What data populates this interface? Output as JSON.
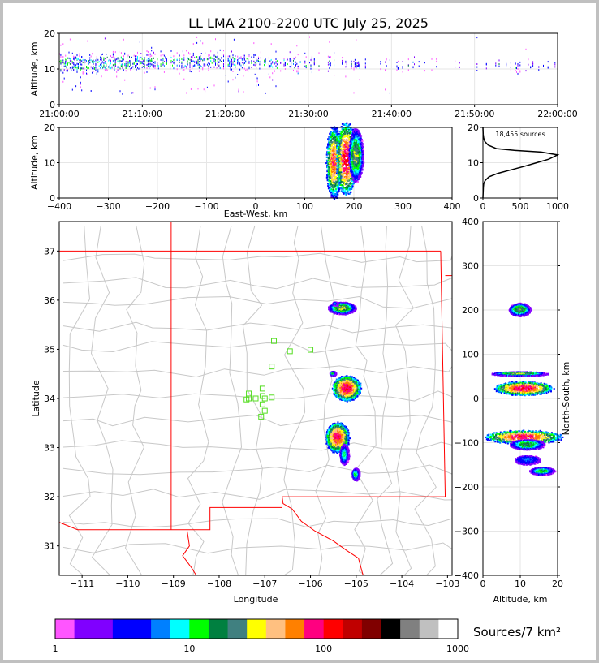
{
  "title": "LL LMA 2100-2200 UTC July 25, 2025",
  "chart_data": [
    {
      "type": "scatter",
      "panel": "time-height",
      "ylabel": "Altitude, km",
      "xlim": [
        "21:00:00",
        "22:00:00"
      ],
      "ylim": [
        0,
        20
      ],
      "x_ticks": [
        "21:00:00",
        "21:10:00",
        "21:20:00",
        "21:30:00",
        "21:40:00",
        "21:50:00",
        "22:00:00"
      ],
      "y_ticks": [
        "0",
        "10",
        "20"
      ],
      "activity": [
        {
          "t": "21:00",
          "lo": 8,
          "hi": 15,
          "density": 1.0
        },
        {
          "t": "21:05",
          "lo": 8,
          "hi": 15,
          "density": 1.0
        },
        {
          "t": "21:10",
          "lo": 9,
          "hi": 15,
          "density": 0.9
        },
        {
          "t": "21:15",
          "lo": 9,
          "hi": 15,
          "density": 0.85
        },
        {
          "t": "21:20",
          "lo": 9,
          "hi": 15,
          "density": 0.8
        },
        {
          "t": "21:25",
          "lo": 9,
          "hi": 14,
          "density": 0.6
        },
        {
          "t": "21:30",
          "lo": 9,
          "hi": 14,
          "density": 0.45
        },
        {
          "t": "21:35",
          "lo": 9,
          "hi": 14,
          "density": 0.45
        },
        {
          "t": "21:40",
          "lo": 9,
          "hi": 13,
          "density": 0.3
        },
        {
          "t": "21:45",
          "lo": 9,
          "hi": 13,
          "density": 0.2
        },
        {
          "t": "21:50",
          "lo": 9,
          "hi": 13,
          "density": 0.2
        },
        {
          "t": "21:55",
          "lo": 9,
          "hi": 13,
          "density": 0.25
        },
        {
          "t": "22:00",
          "lo": 9,
          "hi": 13,
          "density": 0.15
        }
      ]
    },
    {
      "type": "heatmap",
      "panel": "east-west-altitude",
      "xlabel": "East-West, km",
      "ylabel": "Altitude, km",
      "xlim": [
        -400,
        400
      ],
      "ylim": [
        0,
        20
      ],
      "x_ticks": [
        "−400",
        "−300",
        "−200",
        "−100",
        "0",
        "100",
        "200",
        "300",
        "400"
      ],
      "y_ticks": [
        "0",
        "10",
        "20"
      ],
      "blobs": [
        {
          "x": 160,
          "y": 10,
          "sx": 6,
          "sy": 4,
          "peak": 80
        },
        {
          "x": 185,
          "y": 11,
          "sx": 8,
          "sy": 4,
          "peak": 120
        },
        {
          "x": 205,
          "y": 12,
          "sx": 6,
          "sy": 3,
          "peak": 30
        }
      ]
    },
    {
      "type": "line",
      "panel": "altitude-histogram",
      "annotation": "18,455 sources",
      "xlim": [
        0,
        1000
      ],
      "ylim": [
        0,
        20
      ],
      "x_ticks": [
        "0",
        "500",
        "1000"
      ],
      "y_ticks": [
        "0",
        "10",
        "20"
      ],
      "x": [
        0,
        5,
        10,
        30,
        80,
        200,
        380,
        560,
        720,
        880,
        1000,
        780,
        420,
        180,
        70,
        25,
        10,
        3,
        0
      ],
      "y": [
        0,
        3,
        4,
        5,
        6,
        7,
        8,
        9,
        10,
        11,
        12.2,
        13,
        13.5,
        14,
        15,
        16,
        17,
        18,
        20
      ]
    },
    {
      "type": "heatmap",
      "panel": "plan-view-map",
      "xlabel": "Longitude",
      "ylabel": "Latitude",
      "xlim": [
        -111.5,
        -102.9
      ],
      "ylim": [
        30.4,
        37.6
      ],
      "x_ticks": [
        "−111",
        "−110",
        "−109",
        "−108",
        "−107",
        "−106",
        "−105",
        "−104",
        "−103"
      ],
      "y_ticks": [
        "31",
        "32",
        "33",
        "34",
        "35",
        "36",
        "37"
      ],
      "clusters": [
        {
          "lon": -105.2,
          "lat": 34.2,
          "slon": 0.12,
          "slat": 0.1,
          "peak": 120
        },
        {
          "lon": -105.5,
          "lat": 34.5,
          "slon": 0.03,
          "slat": 0.02,
          "peak": 15
        },
        {
          "lon": -105.4,
          "lat": 33.2,
          "slon": 0.1,
          "slat": 0.12,
          "peak": 100
        },
        {
          "lon": -105.25,
          "lat": 32.85,
          "slon": 0.05,
          "slat": 0.1,
          "peak": 10
        },
        {
          "lon": -105.0,
          "lat": 32.45,
          "slon": 0.04,
          "slat": 0.06,
          "peak": 12
        },
        {
          "lon": -105.3,
          "lat": 35.83,
          "slon": 0.12,
          "slat": 0.05,
          "peak": 30
        },
        {
          "lon": -105.45,
          "lat": 35.92,
          "slon": 0.03,
          "slat": 0.02,
          "peak": 8
        }
      ],
      "stations": [
        {
          "lon": -106.8,
          "lat": 35.17
        },
        {
          "lon": -106.45,
          "lat": 34.96
        },
        {
          "lon": -106.0,
          "lat": 34.99
        },
        {
          "lon": -106.85,
          "lat": 34.65
        },
        {
          "lon": -107.35,
          "lat": 34.1
        },
        {
          "lon": -107.05,
          "lat": 34.2
        },
        {
          "lon": -107.05,
          "lat": 34.05
        },
        {
          "lon": -107.35,
          "lat": 34.0
        },
        {
          "lon": -107.2,
          "lat": 34.0
        },
        {
          "lon": -107.0,
          "lat": 34.0
        },
        {
          "lon": -106.85,
          "lat": 34.02
        },
        {
          "lon": -107.4,
          "lat": 33.98
        },
        {
          "lon": -107.05,
          "lat": 33.88
        },
        {
          "lon": -107.0,
          "lat": 33.75
        },
        {
          "lon": -107.08,
          "lat": 33.63
        }
      ]
    },
    {
      "type": "heatmap",
      "panel": "altitude-north-south",
      "xlabel": "Altitude, km",
      "ylabel": "North-South, km",
      "xlim": [
        0,
        20
      ],
      "ylim": [
        -400,
        400
      ],
      "x_ticks": [
        "0",
        "10",
        "20"
      ],
      "y_ticks": [
        "400",
        "300",
        "200",
        "100",
        "0",
        "−100",
        "−200",
        "−300",
        "−400"
      ],
      "blobs": [
        {
          "alt": 10,
          "ns": 200,
          "salt": 1.2,
          "sns": 6,
          "peak": 25
        },
        {
          "alt": 10,
          "ns": 55,
          "salt": 3,
          "sns": 2,
          "peak": 30
        },
        {
          "alt": 11,
          "ns": 22,
          "salt": 3,
          "sns": 6,
          "peak": 120
        },
        {
          "alt": 11,
          "ns": -88,
          "salt": 4,
          "sns": 6,
          "peak": 110
        },
        {
          "alt": 12,
          "ns": -105,
          "salt": 2,
          "sns": 5,
          "peak": 20
        },
        {
          "alt": 12,
          "ns": -140,
          "salt": 2,
          "sns": 6,
          "peak": 6
        },
        {
          "alt": 16,
          "ns": -165,
          "salt": 1.5,
          "sns": 4,
          "peak": 15
        }
      ]
    }
  ],
  "colorbar": {
    "label": "Sources/7 km²",
    "tick_labels": [
      "1",
      "10",
      "100",
      "1000"
    ],
    "colors": [
      "#ff55ff",
      "#8000ff",
      "#8000ff",
      "#0000ff",
      "#0000ff",
      "#0080ff",
      "#00ffff",
      "#00ff00",
      "#008040",
      "#408080",
      "#ffff00",
      "#ffc080",
      "#ff8000",
      "#ff0080",
      "#ff0000",
      "#c00000",
      "#800000",
      "#000000",
      "#808080",
      "#c0c0c0",
      "#ffffff"
    ]
  }
}
